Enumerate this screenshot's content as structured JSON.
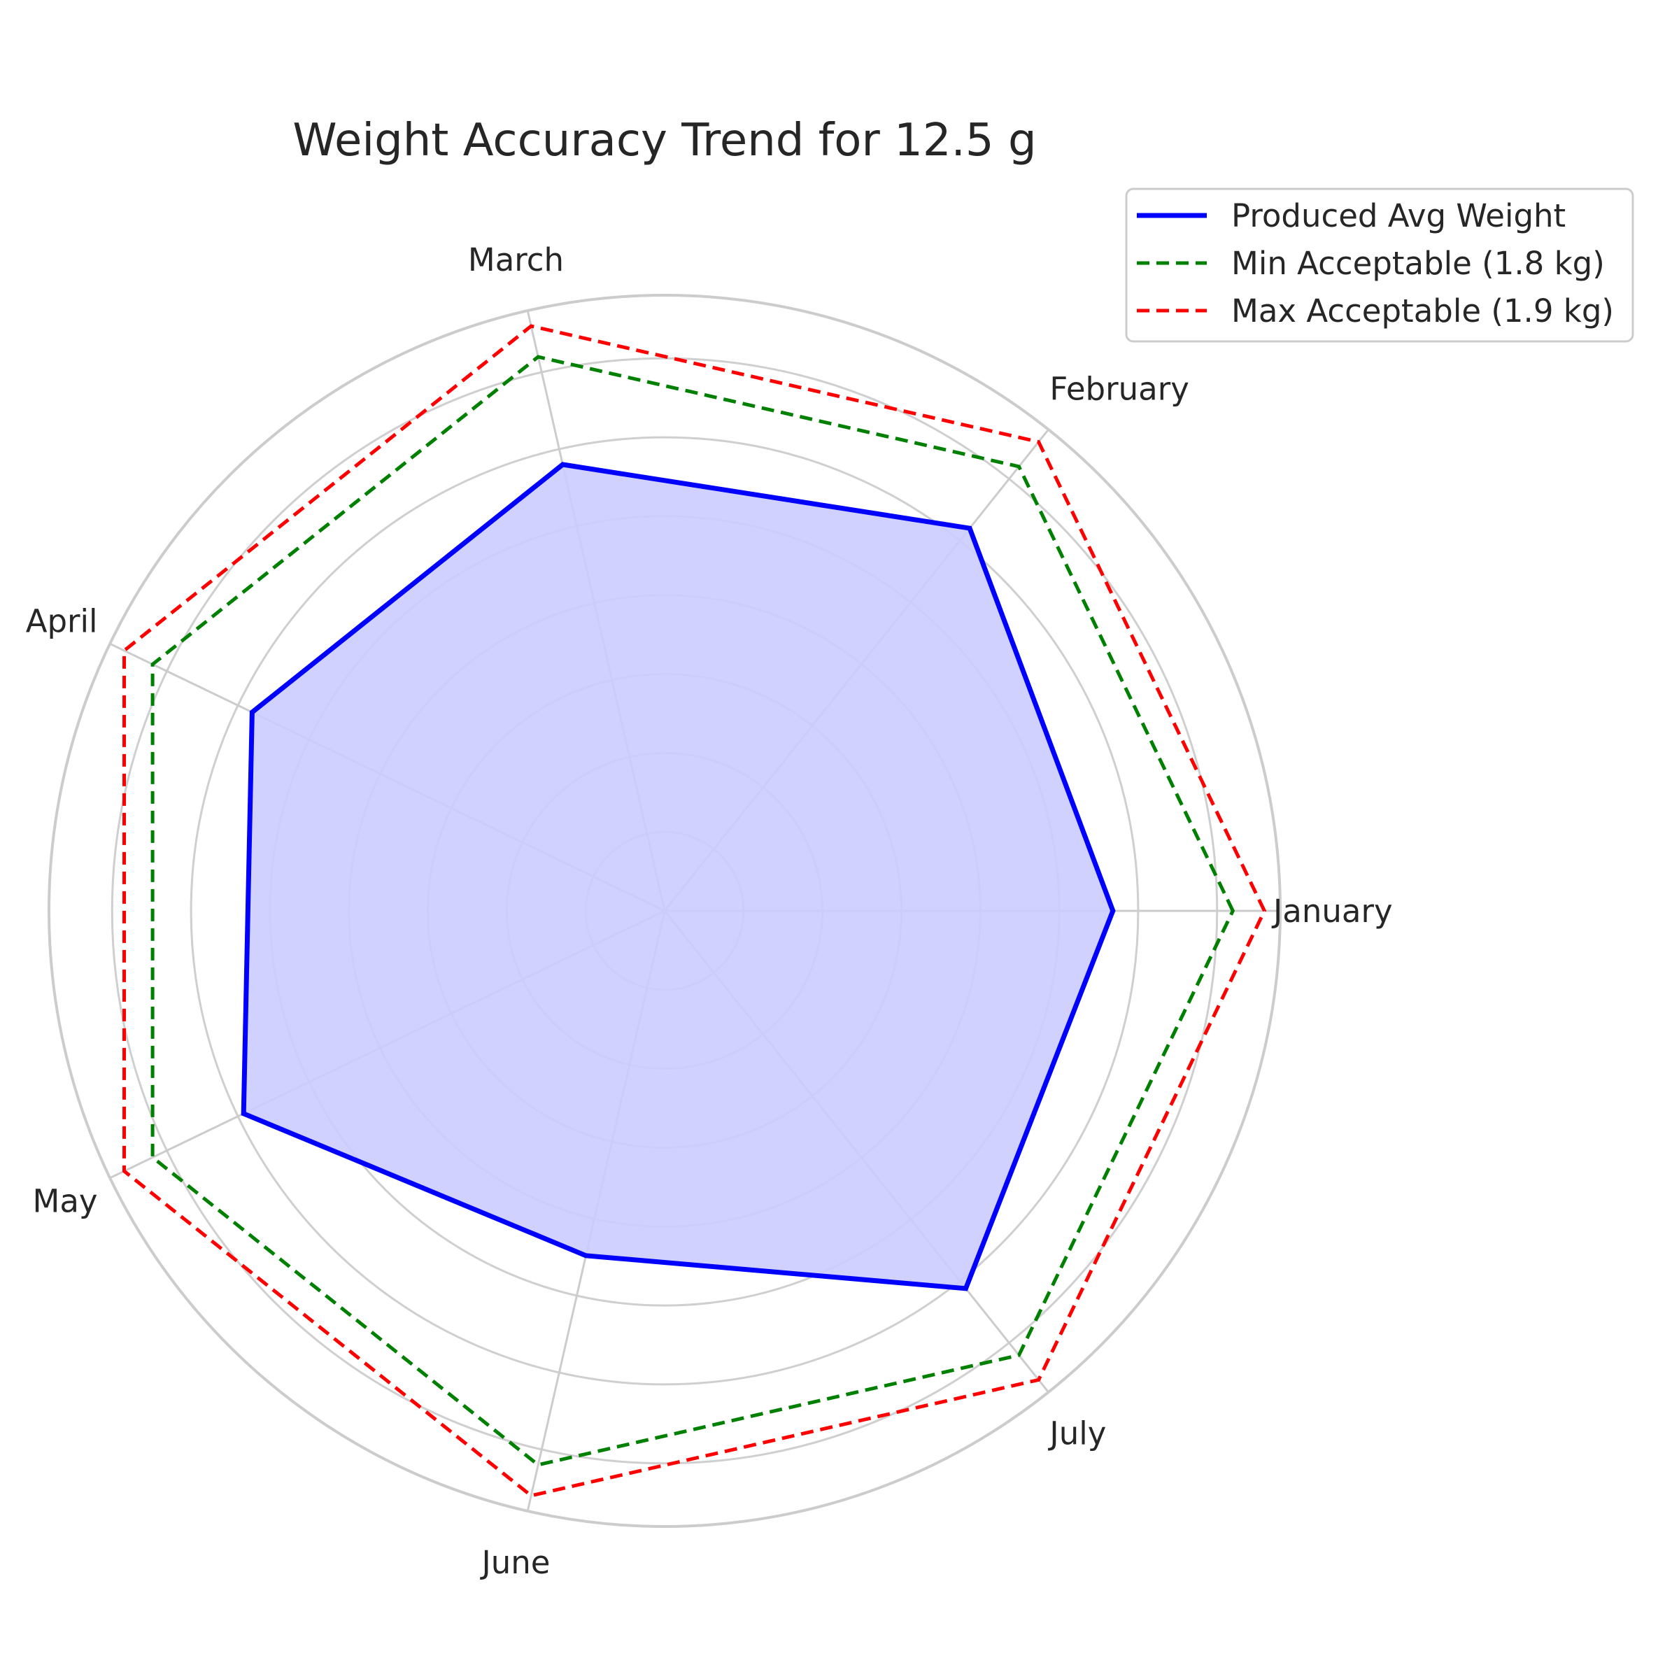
{
  "chart_data": {
    "type": "radar",
    "title": "Weight Accuracy Trend for 12.5 g",
    "categories": [
      "January",
      "February",
      "March",
      "April",
      "May",
      "June",
      "July"
    ],
    "rmax": 1.95,
    "ring_step": 0.25,
    "grid": true,
    "legend_position": "top-right",
    "series": [
      {
        "name": "Produced Avg Weight",
        "values": [
          1.42,
          1.55,
          1.45,
          1.45,
          1.48,
          1.12,
          1.53
        ],
        "color": "#0000ff",
        "style": "solid",
        "fill": "#ccccff"
      },
      {
        "name": "Min Acceptable (1.8 kg)",
        "values": [
          1.8,
          1.8,
          1.8,
          1.8,
          1.8,
          1.8,
          1.8
        ],
        "color": "#008000",
        "style": "dashed"
      },
      {
        "name": "Max Acceptable (1.9 kg)",
        "values": [
          1.9,
          1.9,
          1.9,
          1.9,
          1.9,
          1.9,
          1.9
        ],
        "color": "#ff0000",
        "style": "dashed"
      }
    ]
  }
}
